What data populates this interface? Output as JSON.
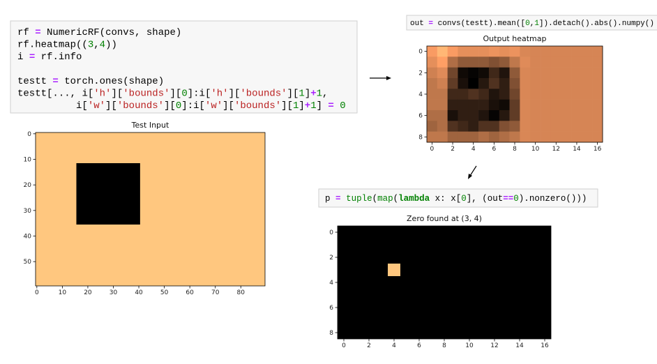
{
  "cells": [
    {
      "lines": [
        "rf = NumericRF(convs, shape)",
        "rf.heatmap((3,4))",
        "i = rf.info",
        "",
        "testt = torch.ones(shape)",
        "testt[..., i['h']['bounds'][0]:i['h']['bounds'][1]+1,",
        "          i['w']['bounds'][0]:i['w']['bounds'][1]+1] = 0"
      ]
    },
    {
      "lines": [
        "out = convs(testt).mean([0,1]).detach().abs().numpy()"
      ]
    },
    {
      "lines": [
        "p = tuple(map(lambda x: x[0], (out==0).nonzero()))"
      ]
    }
  ],
  "plots": [
    {
      "type": "image",
      "title": "Test Input",
      "shape": [
        60,
        90
      ],
      "zero_rows": [
        12,
        35
      ],
      "zero_cols": [
        16,
        40
      ],
      "xlim": [
        -0.5,
        89.5
      ],
      "ylim": [
        59.5,
        -0.5
      ],
      "xticks": [
        0,
        10,
        20,
        30,
        40,
        50,
        60,
        70,
        80
      ],
      "yticks": [
        0,
        10,
        20,
        30,
        40,
        50
      ]
    },
    {
      "type": "heatmap",
      "title": "Output heatmap",
      "values": [
        [
          0.78,
          0.92,
          0.78,
          0.72,
          0.72,
          0.72,
          0.74,
          0.72,
          0.74,
          0.68,
          0.67,
          0.67,
          0.67,
          0.67,
          0.67,
          0.67,
          0.67
        ],
        [
          0.72,
          0.8,
          0.55,
          0.45,
          0.45,
          0.45,
          0.4,
          0.45,
          0.6,
          0.7,
          0.67,
          0.67,
          0.67,
          0.67,
          0.67,
          0.67,
          0.67
        ],
        [
          0.65,
          0.7,
          0.35,
          0.05,
          0.02,
          0.05,
          0.2,
          0.1,
          0.45,
          0.68,
          0.67,
          0.67,
          0.67,
          0.67,
          0.67,
          0.67,
          0.67
        ],
        [
          0.6,
          0.65,
          0.3,
          0.08,
          0,
          0.12,
          0.25,
          0.15,
          0.4,
          0.68,
          0.67,
          0.67,
          0.67,
          0.67,
          0.67,
          0.67,
          0.67
        ],
        [
          0.6,
          0.6,
          0.2,
          0.2,
          0.25,
          0.2,
          0.1,
          0.15,
          0.35,
          0.68,
          0.67,
          0.67,
          0.67,
          0.67,
          0.67,
          0.67,
          0.67
        ],
        [
          0.6,
          0.6,
          0.15,
          0.15,
          0.15,
          0.15,
          0.08,
          0.05,
          0.3,
          0.68,
          0.67,
          0.67,
          0.67,
          0.67,
          0.67,
          0.67,
          0.67
        ],
        [
          0.55,
          0.55,
          0.08,
          0.15,
          0.15,
          0.1,
          0.02,
          0.12,
          0.3,
          0.68,
          0.67,
          0.67,
          0.67,
          0.67,
          0.67,
          0.67,
          0.67
        ],
        [
          0.5,
          0.55,
          0.25,
          0.2,
          0.15,
          0.25,
          0.25,
          0.4,
          0.45,
          0.68,
          0.67,
          0.67,
          0.67,
          0.67,
          0.67,
          0.67,
          0.67
        ],
        [
          0.6,
          0.6,
          0.5,
          0.5,
          0.5,
          0.55,
          0.5,
          0.55,
          0.6,
          0.68,
          0.67,
          0.67,
          0.67,
          0.67,
          0.67,
          0.67,
          0.67
        ]
      ],
      "xlim": [
        -0.5,
        16.5
      ],
      "ylim": [
        8.5,
        -0.5
      ],
      "xticks": [
        0,
        2,
        4,
        6,
        8,
        10,
        12,
        14,
        16
      ],
      "yticks": [
        0,
        2,
        4,
        6,
        8
      ]
    },
    {
      "type": "mask",
      "title": "Zero found at (3, 4)",
      "shape": [
        9,
        17
      ],
      "marked_cell": [
        3,
        4
      ],
      "xlim": [
        -0.5,
        16.5
      ],
      "ylim": [
        8.5,
        -0.5
      ],
      "xticks": [
        0,
        2,
        4,
        6,
        8,
        10,
        12,
        14,
        16
      ],
      "yticks": [
        0,
        2,
        4,
        6,
        8
      ]
    }
  ]
}
